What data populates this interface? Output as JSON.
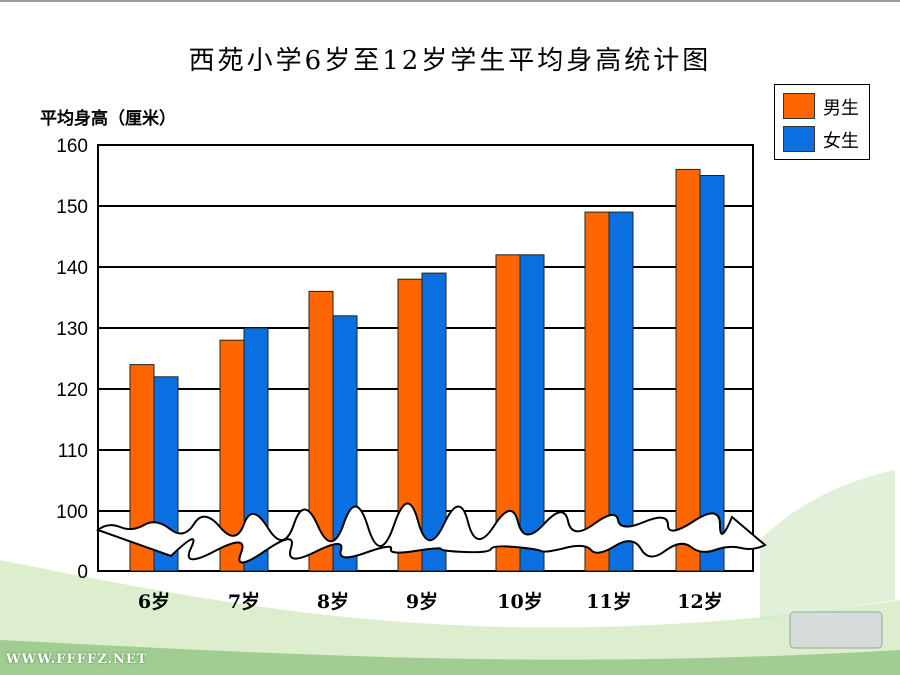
{
  "chart_data": {
    "type": "bar",
    "title": "西苑小学6岁至12岁学生平均身高统计图",
    "ylabel": "平均身高（厘米）",
    "xlabel": "",
    "categories": [
      "6岁",
      "7岁",
      "8岁",
      "9岁",
      "10岁",
      "11岁",
      "12岁"
    ],
    "series": [
      {
        "name": "男生",
        "color": "#ff6600",
        "values": [
          124,
          128,
          136,
          138,
          142,
          149,
          156
        ]
      },
      {
        "name": "女生",
        "color": "#0a6fe0",
        "values": [
          122,
          130,
          132,
          139,
          142,
          149,
          155
        ]
      }
    ],
    "yticks": [
      "160",
      "150",
      "140",
      "130",
      "120",
      "110",
      "100",
      "0"
    ],
    "ylim": [
      100,
      160
    ],
    "axis_break": true,
    "grid": true,
    "legend_position": "top-right"
  },
  "footer": {
    "url": "WWW.FFFFZ.NET"
  }
}
